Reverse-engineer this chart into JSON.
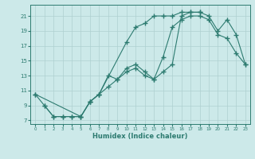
{
  "xlabel": "Humidex (Indice chaleur)",
  "ylabel": "",
  "bg_color": "#cce9e9",
  "line_color": "#2d7b70",
  "grid_color": "#aed0d0",
  "xlim": [
    -0.5,
    23.5
  ],
  "ylim": [
    6.5,
    22.5
  ],
  "xticks": [
    0,
    1,
    2,
    3,
    4,
    5,
    6,
    7,
    8,
    9,
    10,
    11,
    12,
    13,
    14,
    15,
    16,
    17,
    18,
    19,
    20,
    21,
    22,
    23
  ],
  "yticks": [
    7,
    9,
    11,
    13,
    15,
    17,
    19,
    21
  ],
  "line1_x": [
    0,
    1,
    2,
    3,
    4,
    5,
    6,
    7,
    10,
    11,
    12,
    13,
    14,
    15,
    16,
    17,
    18
  ],
  "line1_y": [
    10.5,
    9.0,
    7.5,
    7.5,
    7.5,
    7.5,
    9.5,
    10.5,
    17.5,
    19.5,
    20.0,
    21.0,
    21.0,
    21.0,
    21.5,
    21.5,
    21.5
  ],
  "line2_x": [
    1,
    2,
    3,
    4,
    5,
    6,
    7,
    8,
    9,
    10,
    11,
    12,
    13,
    14,
    15,
    16,
    17,
    18,
    19,
    20,
    21,
    22,
    23
  ],
  "line2_y": [
    9.0,
    7.5,
    7.5,
    7.5,
    7.5,
    9.5,
    10.5,
    11.5,
    12.5,
    13.5,
    14.0,
    13.0,
    12.5,
    13.5,
    14.5,
    21.0,
    21.5,
    21.5,
    21.0,
    19.0,
    20.5,
    18.5,
    14.5
  ],
  "line3_x": [
    0,
    5,
    6,
    7,
    8,
    9,
    10,
    11,
    12,
    13,
    14,
    15,
    16,
    17,
    18,
    19,
    20,
    21,
    22,
    23
  ],
  "line3_y": [
    10.5,
    7.5,
    9.5,
    10.5,
    13.0,
    12.5,
    14.0,
    14.5,
    13.5,
    12.5,
    15.5,
    19.5,
    20.5,
    21.0,
    21.0,
    20.5,
    18.5,
    18.0,
    16.0,
    14.5
  ]
}
